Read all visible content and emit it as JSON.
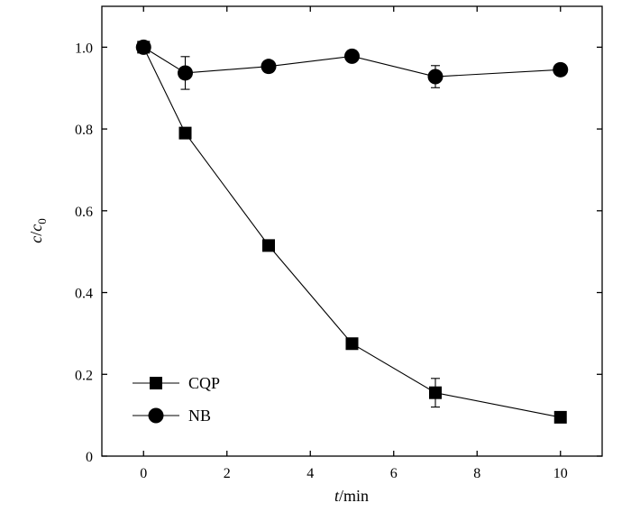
{
  "chart_data": {
    "type": "line",
    "xlabel": {
      "italic": "t",
      "rest": "/min"
    },
    "ylabel": {
      "italic": "c",
      "slash": "/",
      "italic2": "c",
      "sub": "0"
    },
    "xlim": [
      -1,
      11
    ],
    "ylim": [
      0,
      1.1
    ],
    "xticks": [
      0,
      2,
      4,
      6,
      8,
      10
    ],
    "yticks": [
      0,
      0.2,
      0.4,
      0.6,
      0.8,
      1.0
    ],
    "ytick_labels": [
      "0",
      "0.2",
      "0.4",
      "0.6",
      "0.8",
      "1.0"
    ],
    "grid": false,
    "legend_position": "bottom-left",
    "series": [
      {
        "name": "CQP",
        "marker": "square",
        "x": [
          0,
          1,
          3,
          5,
          7,
          10
        ],
        "y": [
          1.0,
          0.79,
          0.515,
          0.275,
          0.155,
          0.095
        ],
        "err": [
          0,
          0,
          0,
          0,
          0.035,
          0
        ]
      },
      {
        "name": "NB",
        "marker": "circle",
        "x": [
          0,
          1,
          3,
          5,
          7,
          10
        ],
        "y": [
          1.0,
          0.937,
          0.953,
          0.978,
          0.928,
          0.945
        ],
        "err": [
          0,
          0.04,
          0,
          0,
          0.027,
          0
        ]
      }
    ]
  }
}
